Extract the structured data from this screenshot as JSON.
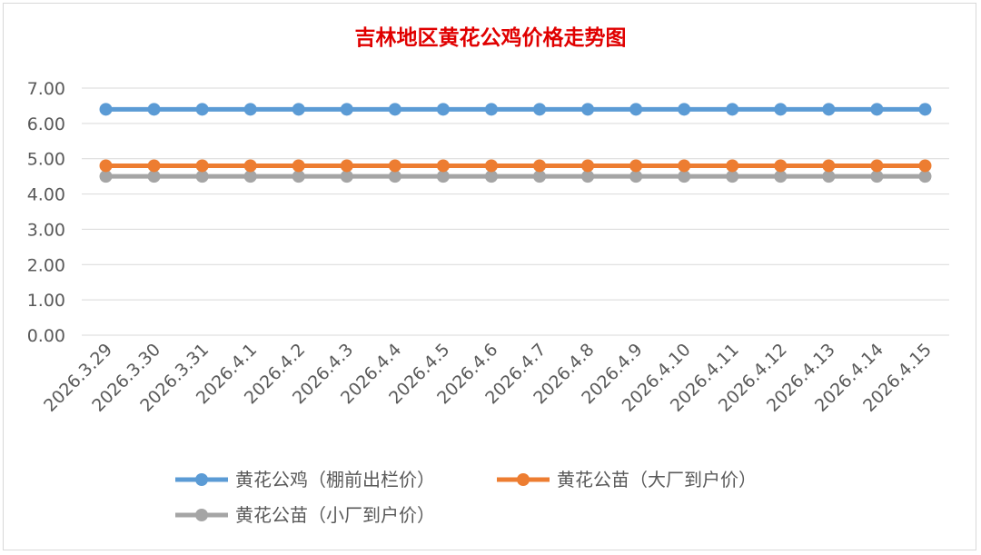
{
  "colors": {
    "title": "#e00000",
    "grid": "#d9d9d9",
    "tick_text": "#595959"
  },
  "chart_data": {
    "type": "line",
    "title": "吉林地区黄花公鸡价格走势图",
    "xlabel": "",
    "ylabel": "",
    "ylim": [
      0,
      7
    ],
    "yticks": [
      "0.00",
      "1.00",
      "2.00",
      "3.00",
      "4.00",
      "5.00",
      "6.00",
      "7.00"
    ],
    "grid": true,
    "legend_position": "bottom",
    "categories": [
      "2026.3.29",
      "2026.3.30",
      "2026.3.31",
      "2026.4.1",
      "2026.4.2",
      "2026.4.3",
      "2026.4.4",
      "2026.4.5",
      "2026.4.6",
      "2026.4.7",
      "2026.4.8",
      "2026.4.9",
      "2026.4.10",
      "2026.4.11",
      "2026.4.12",
      "2026.4.13",
      "2026.4.14",
      "2026.4.15"
    ],
    "series": [
      {
        "name": "黄花公鸡（棚前出栏价）",
        "color": "#5b9bd5",
        "values": [
          6.4,
          6.4,
          6.4,
          6.4,
          6.4,
          6.4,
          6.4,
          6.4,
          6.4,
          6.4,
          6.4,
          6.4,
          6.4,
          6.4,
          6.4,
          6.4,
          6.4,
          6.4
        ]
      },
      {
        "name": "黄花公苗（大厂到户价）",
        "color": "#ed7d31",
        "values": [
          4.8,
          4.8,
          4.8,
          4.8,
          4.8,
          4.8,
          4.8,
          4.8,
          4.8,
          4.8,
          4.8,
          4.8,
          4.8,
          4.8,
          4.8,
          4.8,
          4.8,
          4.8
        ]
      },
      {
        "name": "黄花公苗（小厂到户价）",
        "color": "#a5a5a5",
        "values": [
          4.5,
          4.5,
          4.5,
          4.5,
          4.5,
          4.5,
          4.5,
          4.5,
          4.5,
          4.5,
          4.5,
          4.5,
          4.5,
          4.5,
          4.5,
          4.5,
          4.5,
          4.5
        ]
      }
    ]
  }
}
